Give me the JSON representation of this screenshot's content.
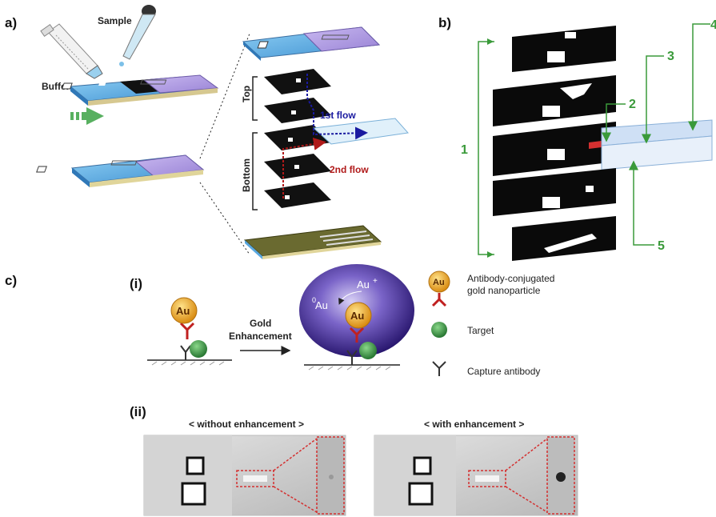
{
  "panels": {
    "a": {
      "label": "a)",
      "sample_label": "Sample",
      "buffer_label": "Buffer",
      "top_label": "Top",
      "bottom_label": "Bottom",
      "first_flow_label": "1st flow",
      "second_flow_label": "2nd flow"
    },
    "b": {
      "label": "b)",
      "callouts": [
        "1",
        "2",
        "3",
        "4",
        "5"
      ]
    },
    "c": {
      "label": "c)",
      "sub_i_label": "(i)",
      "sub_ii_label": "(ii)",
      "reaction_label_line1": "Gold",
      "reaction_label_line2": "Enhancement",
      "au_text": "Au",
      "au_zero_text": "Au",
      "au_zero_sup": "0",
      "au_plus_text": "Au",
      "au_plus_sup": "+",
      "legend": [
        {
          "icon": "gold-nanoparticle-icon",
          "text_line1": "Antibody-conjugated",
          "text_line2": "gold nanoparticle"
        },
        {
          "icon": "target-icon",
          "text_line1": "Target",
          "text_line2": ""
        },
        {
          "icon": "capture-antibody-icon",
          "text_line1": "Capture antibody",
          "text_line2": ""
        }
      ],
      "photo_without_label": "< without enhancement >",
      "photo_with_label": "< with enhancement >"
    }
  },
  "colors": {
    "green_accent": "#3a9a3a",
    "first_flow": "#1a1aa0",
    "second_flow": "#b01a1a",
    "gold": "#e8a020",
    "blue_pad": "#5aa8e0",
    "purple_pad": "#a890d8",
    "highlight_red": "#d43030"
  }
}
